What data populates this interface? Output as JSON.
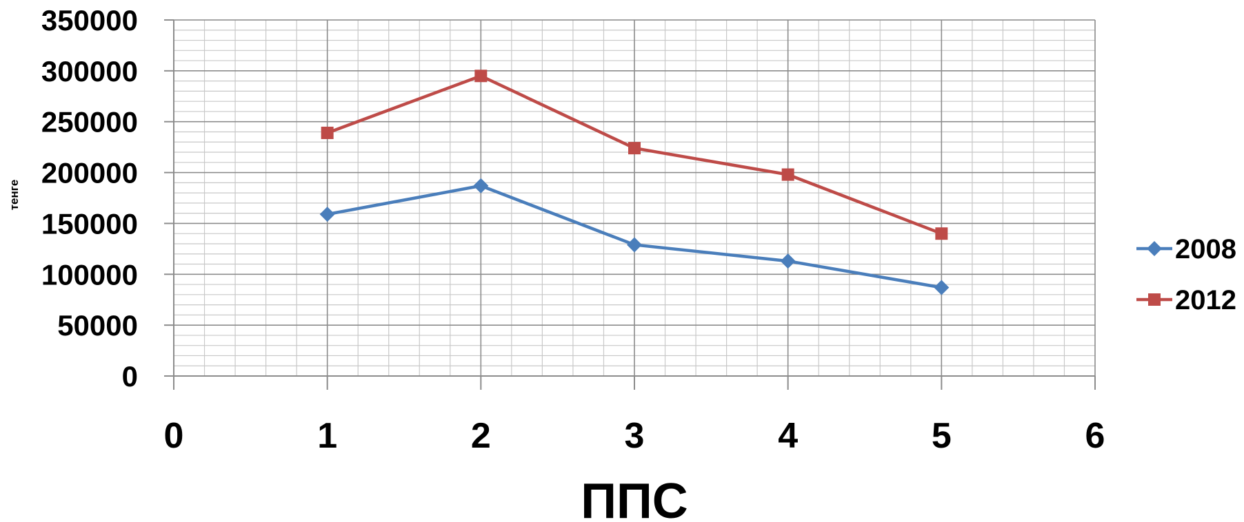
{
  "chart_data": {
    "type": "line",
    "title": "",
    "xlabel": "ППС",
    "ylabel": "тенге",
    "xlim": [
      0,
      6
    ],
    "ylim": [
      0,
      350000
    ],
    "x_ticks": [
      "0",
      "1",
      "2",
      "3",
      "4",
      "5",
      "6"
    ],
    "y_ticks": [
      "0",
      "50000",
      "100000",
      "150000",
      "200000",
      "250000",
      "300000",
      "350000"
    ],
    "grid": true,
    "legend_position": "right",
    "series": [
      {
        "name": "2008",
        "color": "#4A7EBB",
        "marker": "diamond",
        "x": [
          1,
          2,
          3,
          4,
          5
        ],
        "y": [
          159000,
          187000,
          129000,
          113000,
          87000
        ]
      },
      {
        "name": "2012",
        "color": "#BE4B48",
        "marker": "square",
        "x": [
          1,
          2,
          3,
          4,
          5
        ],
        "y": [
          239000,
          295000,
          224000,
          198000,
          140000
        ]
      }
    ]
  }
}
